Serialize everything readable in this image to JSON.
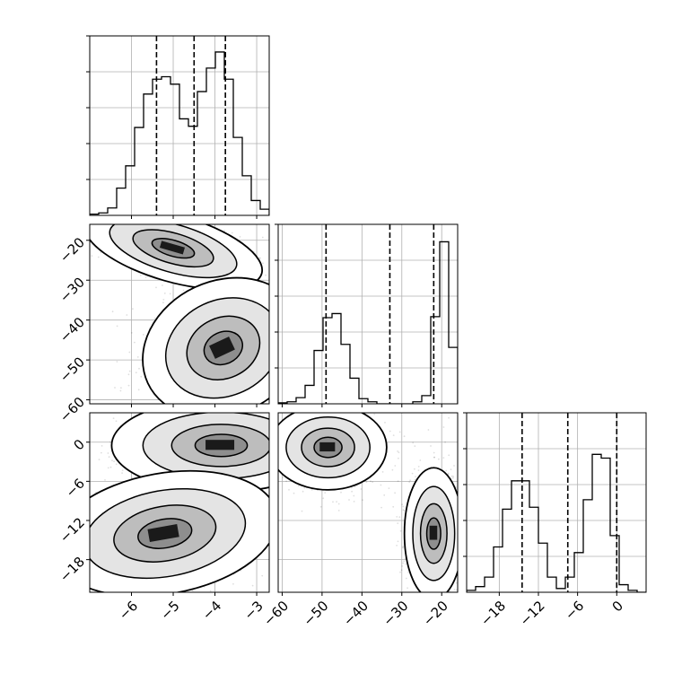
{
  "chart_data": {
    "type": "corner",
    "title": "",
    "parameters": [
      {
        "label": "",
        "range": [
          -7.0,
          -2.7
        ],
        "ticks": [
          -6,
          -5,
          -4,
          -3
        ],
        "tick_labels": [
          "−6",
          "−5",
          "−4",
          "−3"
        ],
        "quantiles": [
          -5.4,
          -4.5,
          -3.75
        ],
        "hist": {
          "edges_start": -7.0,
          "bin_width": 0.215,
          "counts": [
            1,
            2,
            6,
            22,
            40,
            71,
            98,
            110,
            112,
            106,
            78,
            72,
            100,
            119,
            132,
            110,
            63,
            32,
            12,
            5
          ]
        },
        "hist_ylim": [
          0,
          145
        ]
      },
      {
        "label": "",
        "range": [
          -61,
          -16
        ],
        "ticks": [
          -60,
          -50,
          -40,
          -30,
          -20
        ],
        "tick_labels": [
          "−60",
          "−50",
          "−40",
          "−30",
          "−20"
        ],
        "quantiles": [
          -49,
          -33,
          -22
        ],
        "hist": {
          "edges_start": -61,
          "bin_width": 2.25,
          "counts": [
            1,
            2,
            6,
            18,
            52,
            84,
            88,
            58,
            25,
            5,
            2,
            0,
            0,
            0,
            0,
            2,
            8,
            85,
            158,
            55
          ]
        },
        "hist_ylim": [
          0,
          175
        ]
      },
      {
        "label": "",
        "range": [
          -23,
          4.5
        ],
        "ticks": [
          -18,
          -12,
          -6,
          0
        ],
        "tick_labels": [
          "−18",
          "−12",
          "−6",
          "0"
        ],
        "quantiles": [
          -14.5,
          -7.5,
          0
        ],
        "hist": {
          "edges_start": -23,
          "bin_width": 1.375,
          "counts": [
            1,
            3,
            8,
            24,
            44,
            59,
            59,
            45,
            26,
            8,
            2,
            8,
            21,
            49,
            73,
            71,
            30,
            4,
            1,
            0
          ]
        },
        "hist_ylim": [
          0,
          95
        ]
      }
    ],
    "pairs": [
      {
        "x": 0,
        "y": 1,
        "modes": [
          {
            "cx": -5.0,
            "cy": -22.0,
            "rx": 1.05,
            "ry": 4.0,
            "tilt": 16,
            "weight": 0.5
          },
          {
            "cx": -3.8,
            "cy": -47.0,
            "rx": 0.95,
            "ry": 8.0,
            "tilt": -25,
            "weight": 0.5
          }
        ]
      },
      {
        "x": 0,
        "y": 2,
        "modes": [
          {
            "cx": -3.85,
            "cy": -0.5,
            "rx": 1.25,
            "ry": 3.4,
            "tilt": 0,
            "weight": 0.5
          },
          {
            "cx": -5.2,
            "cy": -14.0,
            "rx": 1.3,
            "ry": 4.4,
            "tilt": -10,
            "weight": 0.5
          }
        ]
      },
      {
        "x": 1,
        "y": 2,
        "modes": [
          {
            "cx": -48.5,
            "cy": -0.8,
            "rx": 7.0,
            "ry": 3.1,
            "tilt": 0,
            "weight": 0.5
          },
          {
            "cx": -22.0,
            "cy": -14.0,
            "rx": 3.5,
            "ry": 4.8,
            "tilt": 0,
            "weight": 0.5
          }
        ]
      }
    ],
    "grid": true,
    "colors": {
      "line": "#000000",
      "grid": "#b0b0b0",
      "point": "#000000"
    }
  }
}
